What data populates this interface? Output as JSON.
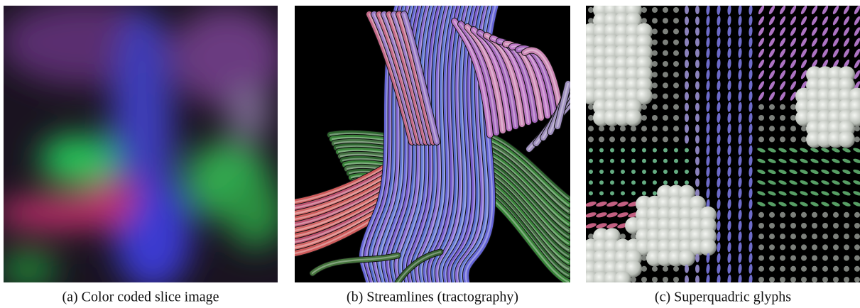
{
  "figure": {
    "panels": [
      {
        "caption": "(a) Color coded slice image"
      },
      {
        "caption": "(b) Streamlines (tractography)"
      },
      {
        "caption": "(c) Superquadric glyphs"
      }
    ]
  }
}
